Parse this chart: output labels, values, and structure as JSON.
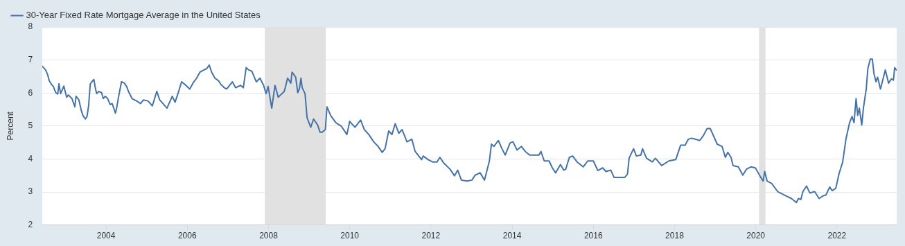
{
  "chart_data": {
    "type": "line",
    "ylabel": "Percent",
    "xlim": [
      2002.43,
      2023.47
    ],
    "xticks": [
      2004,
      2006,
      2008,
      2010,
      2012,
      2014,
      2016,
      2018,
      2020,
      2022
    ],
    "ylim": [
      2,
      8
    ],
    "yticks": [
      2,
      3,
      4,
      5,
      6,
      7,
      8
    ],
    "grid": "y",
    "legend": "top left",
    "marker": "none",
    "line_style": "solid",
    "bands": [
      {
        "axis": "x",
        "from": 2007.91,
        "to": 2009.41,
        "color": "#e1e1e1"
      },
      {
        "axis": "x",
        "from": 2020.08,
        "to": 2020.24,
        "color": "#e1e1e1"
      }
    ],
    "series": [
      {
        "name": "30-Year Fixed Rate Mortgage Average in the United States",
        "color": "#4572a7",
        "x": [
          2002.43,
          2002.51,
          2002.56,
          2002.6,
          2002.65,
          2002.7,
          2002.76,
          2002.81,
          2002.84,
          2002.88,
          2002.96,
          2003.03,
          2003.07,
          2003.16,
          2003.23,
          2003.26,
          2003.33,
          2003.39,
          2003.43,
          2003.49,
          2003.53,
          2003.57,
          2003.61,
          2003.65,
          2003.7,
          2003.74,
          2003.77,
          2003.82,
          2003.89,
          2003.93,
          2003.98,
          2004.04,
          2004.1,
          2004.15,
          2004.23,
          2004.26,
          2004.31,
          2004.38,
          2004.45,
          2004.51,
          2004.55,
          2004.64,
          2004.75,
          2004.85,
          2004.92,
          2005.03,
          2005.14,
          2005.25,
          2005.32,
          2005.4,
          2005.5,
          2005.63,
          2005.7,
          2005.77,
          2005.86,
          2005.93,
          2006.06,
          2006.14,
          2006.23,
          2006.31,
          2006.41,
          2006.48,
          2006.54,
          2006.6,
          2006.68,
          2006.77,
          2006.82,
          2006.91,
          2006.97,
          2007.11,
          2007.19,
          2007.31,
          2007.38,
          2007.45,
          2007.51,
          2007.59,
          2007.7,
          2007.79,
          2007.88,
          2007.94,
          2007.99,
          2008.08,
          2008.16,
          2008.24,
          2008.33,
          2008.39,
          2008.47,
          2008.55,
          2008.58,
          2008.67,
          2008.72,
          2008.76,
          2008.8,
          2008.83,
          2008.9,
          2008.95,
          2009.04,
          2009.11,
          2009.21,
          2009.27,
          2009.32,
          2009.4,
          2009.44,
          2009.53,
          2009.66,
          2009.79,
          2009.93,
          2010.0,
          2010.13,
          2010.27,
          2010.36,
          2010.47,
          2010.59,
          2010.7,
          2010.8,
          2010.87,
          2010.96,
          2011.04,
          2011.12,
          2011.21,
          2011.29,
          2011.41,
          2011.53,
          2011.61,
          2011.77,
          2011.81,
          2011.93,
          2012.04,
          2012.15,
          2012.22,
          2012.32,
          2012.47,
          2012.58,
          2012.66,
          2012.75,
          2012.89,
          2013.01,
          2013.09,
          2013.21,
          2013.32,
          2013.44,
          2013.49,
          2013.55,
          2013.66,
          2013.75,
          2013.83,
          2013.95,
          2014.02,
          2014.12,
          2014.23,
          2014.32,
          2014.43,
          2014.66,
          2014.71,
          2014.79,
          2014.91,
          2014.99,
          2015.07,
          2015.19,
          2015.27,
          2015.32,
          2015.41,
          2015.49,
          2015.6,
          2015.75,
          2015.86,
          2016.0,
          2016.11,
          2016.23,
          2016.31,
          2016.43,
          2016.51,
          2016.66,
          2016.77,
          2016.84,
          2016.88,
          2016.99,
          2017.06,
          2017.17,
          2017.21,
          2017.31,
          2017.45,
          2017.53,
          2017.68,
          2017.86,
          2018.03,
          2018.15,
          2018.26,
          2018.34,
          2018.42,
          2018.51,
          2018.62,
          2018.71,
          2018.8,
          2018.88,
          2018.97,
          2019.05,
          2019.17,
          2019.25,
          2019.31,
          2019.39,
          2019.44,
          2019.57,
          2019.68,
          2019.77,
          2019.88,
          2019.99,
          2020.11,
          2020.18,
          2020.22,
          2020.28,
          2020.39,
          2020.54,
          2020.65,
          2020.76,
          2020.88,
          2021.0,
          2021.05,
          2021.11,
          2021.16,
          2021.25,
          2021.33,
          2021.45,
          2021.56,
          2021.65,
          2021.73,
          2021.82,
          2021.88,
          2021.97,
          2022.05,
          2022.14,
          2022.22,
          2022.31,
          2022.37,
          2022.42,
          2022.47,
          2022.51,
          2022.55,
          2022.61,
          2022.65,
          2022.72,
          2022.76,
          2022.82,
          2022.87,
          2022.91,
          2022.96,
          2023.0,
          2023.07,
          2023.19,
          2023.27,
          2023.34,
          2023.39,
          2023.42,
          2023.46
        ],
        "values": [
          6.81,
          6.7,
          6.56,
          6.37,
          6.27,
          6.2,
          6.01,
          5.97,
          6.28,
          5.98,
          6.21,
          5.87,
          5.94,
          5.83,
          5.58,
          5.9,
          5.79,
          5.47,
          5.32,
          5.21,
          5.29,
          5.61,
          6.27,
          6.34,
          6.41,
          6.12,
          5.98,
          6.05,
          6.01,
          5.83,
          5.9,
          5.83,
          5.65,
          5.68,
          5.39,
          5.54,
          5.9,
          6.34,
          6.3,
          6.19,
          6.05,
          5.83,
          5.76,
          5.68,
          5.79,
          5.76,
          5.61,
          6.05,
          5.79,
          5.68,
          5.54,
          5.9,
          5.72,
          5.98,
          6.34,
          6.27,
          6.12,
          6.3,
          6.45,
          6.63,
          6.7,
          6.74,
          6.85,
          6.63,
          6.45,
          6.37,
          6.27,
          6.16,
          6.12,
          6.34,
          6.16,
          6.23,
          6.16,
          6.77,
          6.7,
          6.66,
          6.34,
          6.45,
          6.23,
          5.98,
          6.2,
          5.54,
          6.23,
          5.87,
          5.98,
          6.05,
          6.45,
          6.3,
          6.63,
          6.48,
          6.01,
          6.12,
          6.45,
          6.16,
          5.98,
          5.25,
          4.96,
          5.21,
          5.03,
          4.81,
          4.81,
          4.89,
          5.58,
          5.32,
          5.1,
          5.0,
          4.74,
          5.14,
          4.96,
          5.18,
          4.89,
          4.74,
          4.52,
          4.38,
          4.2,
          4.31,
          4.85,
          4.74,
          5.07,
          4.78,
          4.89,
          4.52,
          4.6,
          4.23,
          3.98,
          4.09,
          3.98,
          3.91,
          3.91,
          4.05,
          3.87,
          3.69,
          3.49,
          3.66,
          3.36,
          3.33,
          3.36,
          3.51,
          3.58,
          3.36,
          3.94,
          4.45,
          4.38,
          4.56,
          4.31,
          4.12,
          4.49,
          4.52,
          4.27,
          4.38,
          4.23,
          4.12,
          4.12,
          4.23,
          3.94,
          3.94,
          3.73,
          3.58,
          3.83,
          3.66,
          3.69,
          4.05,
          4.09,
          3.91,
          3.76,
          3.94,
          3.94,
          3.65,
          3.73,
          3.62,
          3.66,
          3.44,
          3.44,
          3.44,
          3.54,
          4.02,
          4.31,
          4.09,
          4.12,
          4.31,
          4.02,
          3.91,
          4.02,
          3.8,
          3.94,
          3.98,
          4.42,
          4.42,
          4.6,
          4.63,
          4.6,
          4.56,
          4.71,
          4.92,
          4.92,
          4.67,
          4.45,
          4.38,
          4.05,
          4.2,
          4.05,
          3.8,
          3.76,
          3.51,
          3.69,
          3.76,
          3.73,
          3.47,
          3.33,
          3.62,
          3.33,
          3.26,
          3.01,
          2.94,
          2.87,
          2.8,
          2.68,
          2.8,
          2.77,
          3.01,
          3.18,
          2.97,
          3.01,
          2.8,
          2.88,
          2.91,
          3.15,
          3.04,
          3.11,
          3.55,
          3.91,
          4.6,
          5.1,
          5.29,
          5.1,
          5.83,
          5.32,
          5.54,
          5.03,
          5.54,
          6.12,
          6.74,
          7.03,
          7.03,
          6.59,
          6.34,
          6.48,
          6.12,
          6.7,
          6.3,
          6.43,
          6.39,
          6.77,
          6.7
        ]
      }
    ]
  }
}
